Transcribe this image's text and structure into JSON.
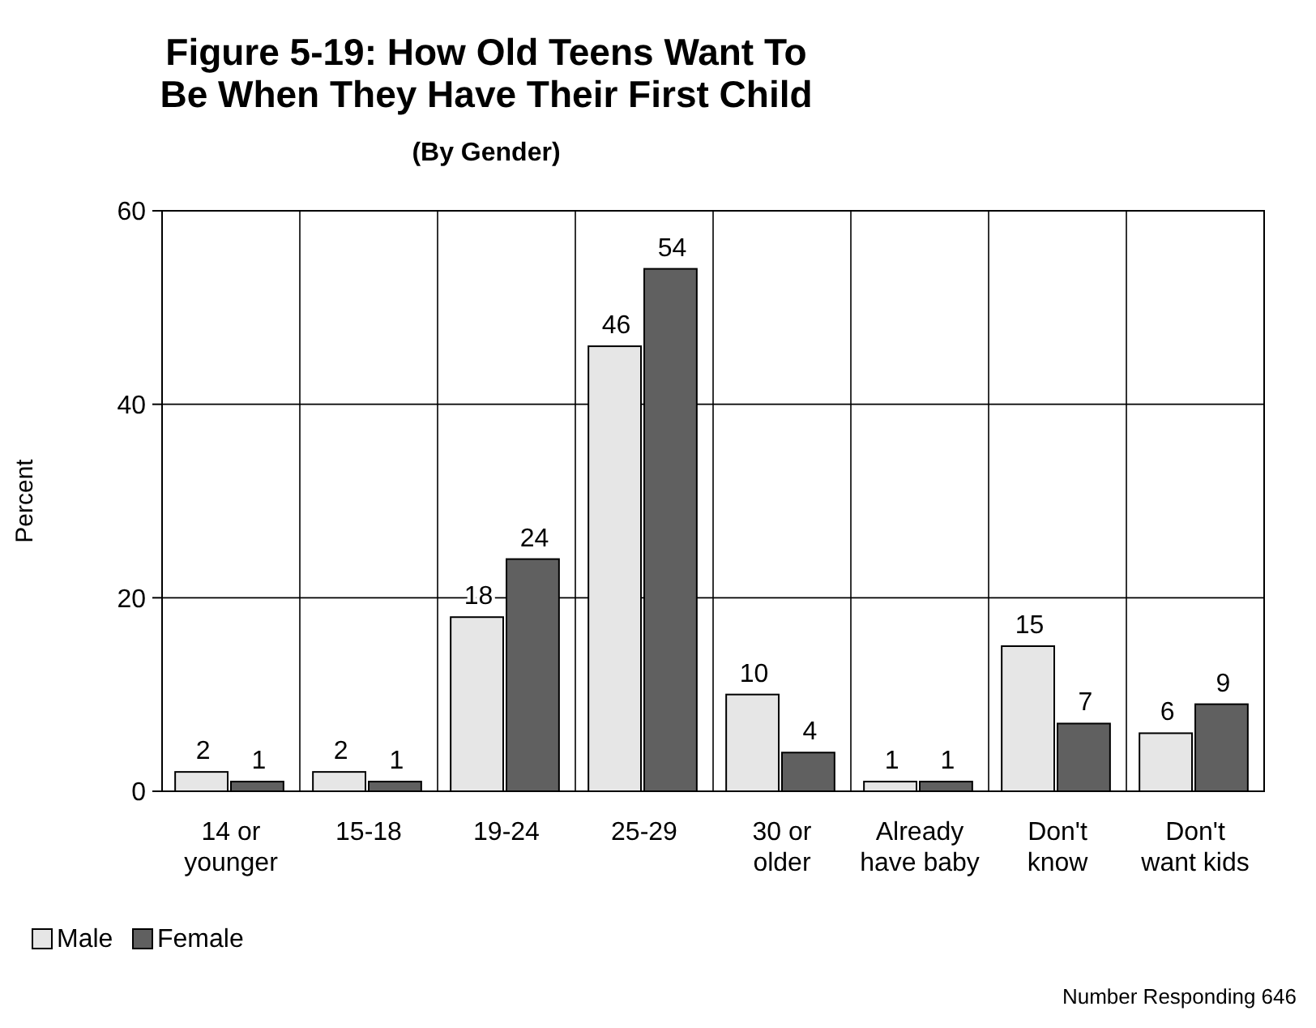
{
  "chart_data": {
    "type": "bar",
    "title": "Figure 5-19: How Old Teens Want To Be When They Have Their First Child",
    "subtitle": "(By Gender)",
    "ylabel": "Percent",
    "categories": [
      "14 or younger",
      "15-18",
      "19-24",
      "25-29",
      "30 or older",
      "Already have baby",
      "Don't know",
      "Don't want kids"
    ],
    "series": [
      {
        "name": "Male",
        "color": "#e6e6e6",
        "values": [
          2,
          2,
          18,
          46,
          10,
          1,
          15,
          6
        ]
      },
      {
        "name": "Female",
        "color": "#606060",
        "values": [
          1,
          1,
          24,
          54,
          4,
          1,
          7,
          9
        ]
      }
    ],
    "ylim": [
      0,
      60
    ],
    "yticks": [
      0,
      20,
      40,
      60
    ],
    "grid": true,
    "legend": "bottom left",
    "data_labels": true,
    "annotations": [
      "Number Responding 646"
    ]
  }
}
